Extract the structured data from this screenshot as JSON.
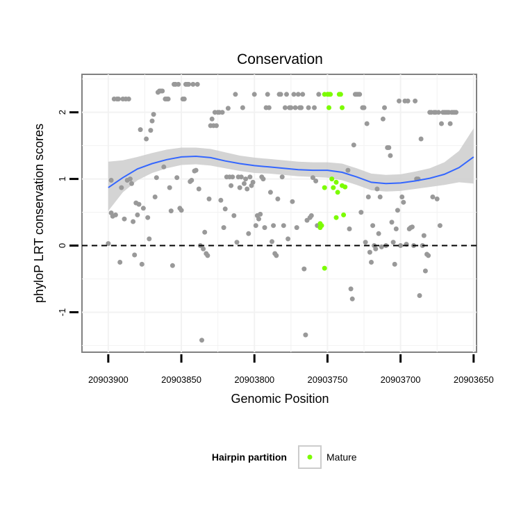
{
  "chart_data": {
    "type": "scatter",
    "title": "Conservation",
    "xlabel": "Genomic Position",
    "ylabel": "phyloP LRT conservation scores",
    "x_reversed": true,
    "xlim": [
      20903918,
      20903648
    ],
    "ylim": [
      -1.6,
      2.57
    ],
    "x_ticks": [
      20903900,
      20903850,
      20903800,
      20903750,
      20903700,
      20903650
    ],
    "x_tick_labels": [
      "20903900",
      "20903850",
      "20903800",
      "20903750",
      "20903700",
      "20903650"
    ],
    "y_ticks": [
      -1,
      0,
      1,
      2
    ],
    "y_tick_labels": [
      "-1",
      "0",
      "1",
      "2"
    ],
    "grid": true,
    "reference_line": {
      "y": 0,
      "style": "dashed"
    },
    "legend": {
      "title": "Hairpin partition",
      "position": "bottom",
      "entries": [
        {
          "label": "Mature",
          "color": "#7cfc00"
        }
      ]
    },
    "colors": {
      "other": "#999999",
      "mature": "#7cfc00",
      "smooth": "#3366ff",
      "band": "#cccccc"
    },
    "series": [
      {
        "name": "Mature",
        "color": "#7cfc00",
        "points": [
          [
            20903752,
            2.27
          ],
          [
            20903750,
            2.27
          ],
          [
            20903749,
            2.27
          ],
          [
            20903748,
            2.27
          ],
          [
            20903742,
            2.27
          ],
          [
            20903741,
            2.27
          ],
          [
            20903749,
            2.07
          ],
          [
            20903740,
            2.07
          ],
          [
            20903747,
            1.0
          ],
          [
            20903744,
            0.95
          ],
          [
            20903752,
            0.87
          ],
          [
            20903746,
            0.87
          ],
          [
            20903743,
            0.8
          ],
          [
            20903740,
            0.9
          ],
          [
            20903738,
            0.88
          ],
          [
            20903739,
            0.46
          ],
          [
            20903744,
            0.42
          ],
          [
            20903755,
            0.33
          ],
          [
            20903754,
            0.3
          ],
          [
            20903755,
            0.27
          ],
          [
            20903752,
            -0.34
          ]
        ]
      },
      {
        "name": "",
        "color": "#999999",
        "points": [
          [
            20903900,
            0.03
          ],
          [
            20903898,
            0.98
          ],
          [
            20903898,
            0.49
          ],
          [
            20903897,
            0.44
          ],
          [
            20903896,
            2.2
          ],
          [
            20903895,
            0.46
          ],
          [
            20903894,
            2.2
          ],
          [
            20903893,
            2.2
          ],
          [
            20903892,
            -0.25
          ],
          [
            20903891,
            0.87
          ],
          [
            20903890,
            2.2
          ],
          [
            20903889,
            0.4
          ],
          [
            20903888,
            2.2
          ],
          [
            20903887,
            0.98
          ],
          [
            20903886,
            2.2
          ],
          [
            20903885,
            1.0
          ],
          [
            20903884,
            0.93
          ],
          [
            20903883,
            0.36
          ],
          [
            20903882,
            -0.14
          ],
          [
            20903881,
            0.64
          ],
          [
            20903880,
            0.46
          ],
          [
            20903879,
            0.62
          ],
          [
            20903878,
            1.74
          ],
          [
            20903877,
            -0.28
          ],
          [
            20903876,
            0.56
          ],
          [
            20903874,
            1.6
          ],
          [
            20903873,
            0.42
          ],
          [
            20903872,
            0.1
          ],
          [
            20903871,
            1.73
          ],
          [
            20903870,
            1.87
          ],
          [
            20903869,
            1.97
          ],
          [
            20903868,
            0.73
          ],
          [
            20903867,
            1.02
          ],
          [
            20903866,
            2.3
          ],
          [
            20903865,
            2.32
          ],
          [
            20903864,
            2.32
          ],
          [
            20903863,
            2.32
          ],
          [
            20903862,
            1.18
          ],
          [
            20903861,
            2.2
          ],
          [
            20903860,
            2.2
          ],
          [
            20903859,
            2.2
          ],
          [
            20903858,
            0.87
          ],
          [
            20903857,
            0.52
          ],
          [
            20903856,
            -0.3
          ],
          [
            20903855,
            2.42
          ],
          [
            20903854,
            2.42
          ],
          [
            20903853,
            1.02
          ],
          [
            20903852,
            2.42
          ],
          [
            20903851,
            0.56
          ],
          [
            20903850,
            0.53
          ],
          [
            20903849,
            2.2
          ],
          [
            20903848,
            2.2
          ],
          [
            20903847,
            2.42
          ],
          [
            20903846,
            2.42
          ],
          [
            20903845,
            2.42
          ],
          [
            20903844,
            0.96
          ],
          [
            20903843,
            0.98
          ],
          [
            20903842,
            2.42
          ],
          [
            20903841,
            1.12
          ],
          [
            20903840,
            1.13
          ],
          [
            20903839,
            2.42
          ],
          [
            20903838,
            0.85
          ],
          [
            20903837,
            0.0
          ],
          [
            20903836,
            -1.42
          ],
          [
            20903835,
            -0.05
          ],
          [
            20903834,
            0.2
          ],
          [
            20903833,
            -0.12
          ],
          [
            20903832,
            -0.15
          ],
          [
            20903831,
            0.7
          ],
          [
            20903830,
            1.8
          ],
          [
            20903829,
            1.9
          ],
          [
            20903828,
            1.8
          ],
          [
            20903827,
            2.0
          ],
          [
            20903826,
            1.8
          ],
          [
            20903825,
            2.0
          ],
          [
            20903824,
            2.0
          ],
          [
            20903823,
            0.68
          ],
          [
            20903822,
            2.0
          ],
          [
            20903821,
            0.27
          ],
          [
            20903820,
            0.55
          ],
          [
            20903819,
            1.03
          ],
          [
            20903818,
            2.06
          ],
          [
            20903817,
            1.03
          ],
          [
            20903816,
            0.9
          ],
          [
            20903815,
            1.03
          ],
          [
            20903814,
            0.45
          ],
          [
            20903813,
            2.27
          ],
          [
            20903812,
            0.05
          ],
          [
            20903811,
            1.03
          ],
          [
            20903810,
            0.87
          ],
          [
            20903809,
            1.03
          ],
          [
            20903808,
            2.07
          ],
          [
            20903807,
            0.93
          ],
          [
            20903806,
            1.0
          ],
          [
            20903805,
            0.85
          ],
          [
            20903804,
            0.18
          ],
          [
            20903803,
            1.03
          ],
          [
            20903802,
            0.9
          ],
          [
            20903801,
            0.95
          ],
          [
            20903800,
            2.27
          ],
          [
            20903799,
            0.3
          ],
          [
            20903798,
            0.45
          ],
          [
            20903797,
            0.4
          ],
          [
            20903796,
            0.47
          ],
          [
            20903795,
            1.03
          ],
          [
            20903794,
            1.0
          ],
          [
            20903793,
            0.27
          ],
          [
            20903792,
            2.07
          ],
          [
            20903791,
            2.27
          ],
          [
            20903790,
            2.07
          ],
          [
            20903789,
            0.8
          ],
          [
            20903788,
            0.06
          ],
          [
            20903787,
            0.3
          ],
          [
            20903786,
            -0.12
          ],
          [
            20903785,
            -0.15
          ],
          [
            20903784,
            0.7
          ],
          [
            20903783,
            2.27
          ],
          [
            20903782,
            2.27
          ],
          [
            20903781,
            1.03
          ],
          [
            20903780,
            0.3
          ],
          [
            20903779,
            2.07
          ],
          [
            20903778,
            2.27
          ],
          [
            20903777,
            0.1
          ],
          [
            20903776,
            2.07
          ],
          [
            20903775,
            2.07
          ],
          [
            20903774,
            0.66
          ],
          [
            20903773,
            2.27
          ],
          [
            20903772,
            2.07
          ],
          [
            20903771,
            0.27
          ],
          [
            20903770,
            2.27
          ],
          [
            20903769,
            2.07
          ],
          [
            20903768,
            2.07
          ],
          [
            20903767,
            2.27
          ],
          [
            20903766,
            -0.35
          ],
          [
            20903765,
            -1.34
          ],
          [
            20903764,
            0.38
          ],
          [
            20903763,
            2.07
          ],
          [
            20903762,
            0.42
          ],
          [
            20903761,
            0.45
          ],
          [
            20903760,
            1.02
          ],
          [
            20903759,
            2.07
          ],
          [
            20903758,
            0.97
          ],
          [
            20903757,
            0.3
          ],
          [
            20903756,
            2.27
          ],
          [
            20903736,
            1.13
          ],
          [
            20903735,
            0.25
          ],
          [
            20903734,
            -0.65
          ],
          [
            20903733,
            -0.8
          ],
          [
            20903732,
            1.51
          ],
          [
            20903731,
            2.27
          ],
          [
            20903730,
            2.27
          ],
          [
            20903729,
            2.27
          ],
          [
            20903728,
            2.27
          ],
          [
            20903727,
            0.5
          ],
          [
            20903726,
            2.07
          ],
          [
            20903725,
            2.07
          ],
          [
            20903724,
            0.05
          ],
          [
            20903723,
            1.83
          ],
          [
            20903722,
            0.73
          ],
          [
            20903721,
            -0.1
          ],
          [
            20903720,
            -0.25
          ],
          [
            20903719,
            0.3
          ],
          [
            20903718,
            0.0
          ],
          [
            20903717,
            -0.05
          ],
          [
            20903716,
            0.85
          ],
          [
            20903715,
            0.18
          ],
          [
            20903714,
            0.73
          ],
          [
            20903713,
            -0.02
          ],
          [
            20903712,
            1.9
          ],
          [
            20903711,
            2.07
          ],
          [
            20903710,
            0.0
          ],
          [
            20903709,
            1.47
          ],
          [
            20903708,
            1.47
          ],
          [
            20903707,
            1.35
          ],
          [
            20903706,
            0.35
          ],
          [
            20903705,
            0.05
          ],
          [
            20903704,
            -0.28
          ],
          [
            20903703,
            0.25
          ],
          [
            20903702,
            0.53
          ],
          [
            20903701,
            2.17
          ],
          [
            20903700,
            0.0
          ],
          [
            20903699,
            0.73
          ],
          [
            20903698,
            0.65
          ],
          [
            20903697,
            2.17
          ],
          [
            20903696,
            0.02
          ],
          [
            20903695,
            2.17
          ],
          [
            20903694,
            0.25
          ],
          [
            20903693,
            0.27
          ],
          [
            20903692,
            0.28
          ],
          [
            20903691,
            0.0
          ],
          [
            20903690,
            2.17
          ],
          [
            20903689,
            1.0
          ],
          [
            20903688,
            1.0
          ],
          [
            20903687,
            -0.75
          ],
          [
            20903686,
            1.6
          ],
          [
            20903685,
            0.0
          ],
          [
            20903684,
            0.15
          ],
          [
            20903683,
            -0.38
          ],
          [
            20903682,
            -0.13
          ],
          [
            20903681,
            -0.15
          ],
          [
            20903680,
            2.0
          ],
          [
            20903679,
            2.0
          ],
          [
            20903678,
            0.73
          ],
          [
            20903677,
            2.0
          ],
          [
            20903676,
            2.0
          ],
          [
            20903675,
            0.7
          ],
          [
            20903674,
            2.0
          ],
          [
            20903673,
            0.3
          ],
          [
            20903672,
            1.83
          ],
          [
            20903671,
            2.0
          ],
          [
            20903670,
            2.0
          ],
          [
            20903669,
            2.0
          ],
          [
            20903668,
            2.0
          ],
          [
            20903667,
            2.0
          ],
          [
            20903666,
            1.83
          ],
          [
            20903665,
            2.0
          ],
          [
            20903664,
            2.0
          ],
          [
            20903663,
            2.0
          ],
          [
            20903662,
            2.0
          ]
        ]
      }
    ],
    "smooth": {
      "x": [
        20903900,
        20903890,
        20903880,
        20903870,
        20903860,
        20903850,
        20903840,
        20903830,
        20903820,
        20903810,
        20903800,
        20903790,
        20903780,
        20903770,
        20903760,
        20903750,
        20903740,
        20903730,
        20903720,
        20903710,
        20903700,
        20903690,
        20903680,
        20903670,
        20903660,
        20903650
      ],
      "y": [
        0.87,
        1.02,
        1.15,
        1.23,
        1.29,
        1.33,
        1.34,
        1.32,
        1.27,
        1.23,
        1.2,
        1.18,
        1.16,
        1.14,
        1.13,
        1.13,
        1.1,
        1.03,
        0.95,
        0.93,
        0.94,
        0.97,
        1.01,
        1.07,
        1.17,
        1.33
      ],
      "lower": [
        0.52,
        0.8,
        0.98,
        1.09,
        1.16,
        1.21,
        1.22,
        1.2,
        1.16,
        1.12,
        1.09,
        1.08,
        1.06,
        1.04,
        1.03,
        1.02,
        0.98,
        0.91,
        0.83,
        0.81,
        0.82,
        0.85,
        0.88,
        0.91,
        0.95,
        0.93
      ],
      "upper": [
        1.26,
        1.28,
        1.33,
        1.39,
        1.44,
        1.47,
        1.47,
        1.45,
        1.4,
        1.35,
        1.32,
        1.3,
        1.28,
        1.26,
        1.25,
        1.25,
        1.23,
        1.16,
        1.08,
        1.06,
        1.07,
        1.11,
        1.16,
        1.25,
        1.42,
        1.76
      ]
    }
  }
}
